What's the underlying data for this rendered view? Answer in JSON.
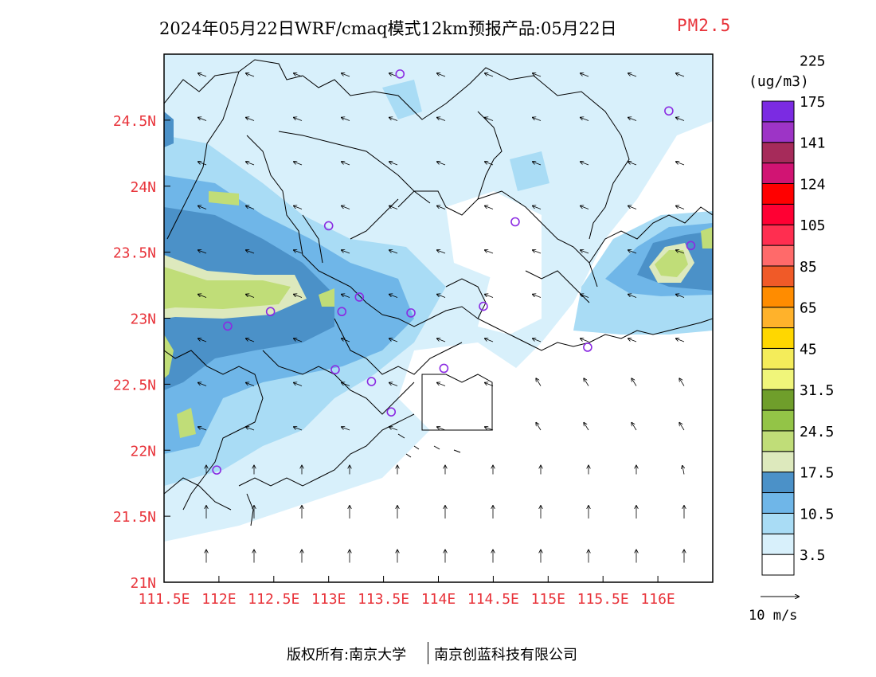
{
  "title": {
    "main": "2024年05月22日WRF/cmaq模式12km预报产品:05月22日",
    "variable": "PM2.5"
  },
  "map": {
    "lat_ticks": [
      "24.5N",
      "24N",
      "23.5N",
      "23N",
      "22.5N",
      "22N",
      "21.5N",
      "21N"
    ],
    "lon_ticks": [
      "111.5E",
      "112E",
      "112.5E",
      "113E",
      "113.5E",
      "114E",
      "114.5E",
      "115E",
      "115.5E",
      "116E"
    ],
    "tick_color": "#e8333a",
    "station_color": "#8b2be2",
    "stations": [
      {
        "lon": 113.65,
        "lat": 24.85
      },
      {
        "lon": 116.1,
        "lat": 24.57
      },
      {
        "lon": 113.0,
        "lat": 23.7
      },
      {
        "lon": 114.7,
        "lat": 23.73
      },
      {
        "lon": 116.3,
        "lat": 23.55
      },
      {
        "lon": 113.28,
        "lat": 23.16
      },
      {
        "lon": 113.12,
        "lat": 23.05
      },
      {
        "lon": 112.47,
        "lat": 23.05
      },
      {
        "lon": 113.75,
        "lat": 23.04
      },
      {
        "lon": 114.41,
        "lat": 23.09
      },
      {
        "lon": 112.08,
        "lat": 22.94
      },
      {
        "lon": 115.36,
        "lat": 22.78
      },
      {
        "lon": 113.06,
        "lat": 22.61
      },
      {
        "lon": 113.39,
        "lat": 22.52
      },
      {
        "lon": 114.05,
        "lat": 22.62
      },
      {
        "lon": 113.57,
        "lat": 22.29
      },
      {
        "lon": 111.98,
        "lat": 21.85
      }
    ]
  },
  "legend": {
    "unit": "(ug/m3)",
    "colors": [
      "#ffffff",
      "#d8f0fb",
      "#a9dcf5",
      "#6fb6e8",
      "#4b91c8",
      "#dde9bd",
      "#c0dd78",
      "#93c447",
      "#6f9e2b",
      "#f0f57a",
      "#f4ec5a",
      "#ffd700",
      "#ffb22b",
      "#ff8c00",
      "#f05a28",
      "#ff6a6a",
      "#ff2e50",
      "#ff0033",
      "#ff0000",
      "#d11473",
      "#a62b5a",
      "#9d34c6",
      "#7b2be2"
    ],
    "labels": [
      "3.5",
      "10.5",
      "17.5",
      "24.5",
      "31.5",
      "45",
      "65",
      "85",
      "105",
      "124",
      "141",
      "175",
      "225"
    ],
    "wind_scale": "10 m/s"
  },
  "footer": {
    "left": "版权所有:南京大学",
    "right": "南京创蓝科技有限公司"
  }
}
